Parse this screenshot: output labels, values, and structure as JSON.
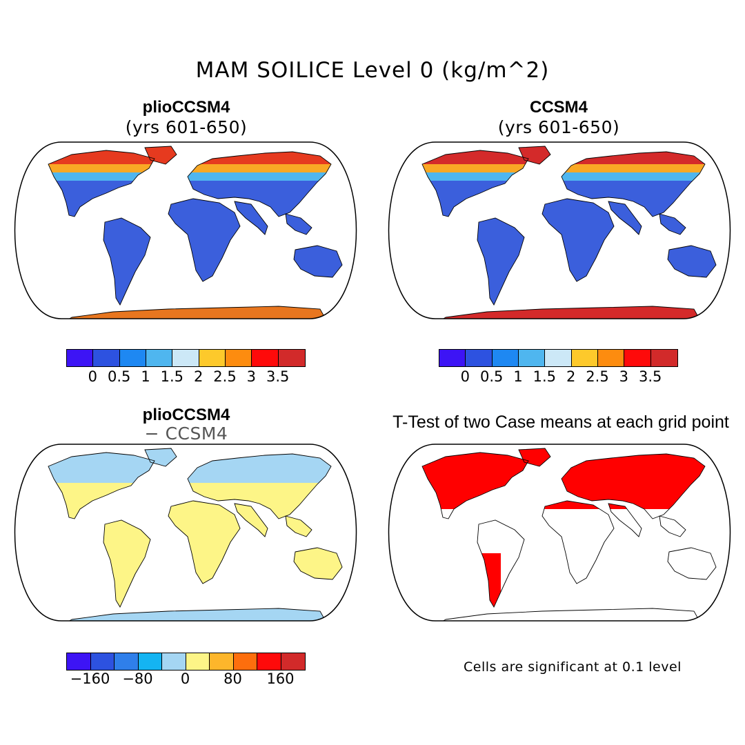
{
  "main_title": "MAM SOILICE Level 0 (kg/m^2)",
  "panels": [
    {
      "id": "plio",
      "title": "plioCCSM4",
      "subtitle": "(yrs 601-650)",
      "colors": {
        "land": "#3b5fdc",
        "north": "#e63a1f",
        "mid": "#f9a825",
        "transition": "#4fb6ef",
        "antarctica": "#e8761f"
      }
    },
    {
      "id": "ccsm4",
      "title": "CCSM4",
      "subtitle": "(yrs 601-650)",
      "colors": {
        "land": "#3b5fdc",
        "north": "#d42a2a",
        "mid": "#f9a825",
        "transition": "#4fb6ef",
        "antarctica": "#d42a2a"
      }
    },
    {
      "id": "diff",
      "title": "plioCCSM4",
      "subtitle": "− CCSM4",
      "colors": {
        "land": "#fdf587",
        "north": "#a5d6f3",
        "mid": "#a5d6f3",
        "transition": "#a5d6f3",
        "antarctica": "#a5d6f3"
      }
    },
    {
      "id": "ttest",
      "title": "T-Test of two Case means at each grid point",
      "note": "Cells are significant at 0.1 level",
      "colors": {
        "signif": "#ff0000"
      }
    }
  ],
  "colorbar_abs": {
    "colors": [
      "#3d14f5",
      "#2d52e0",
      "#1e88f2",
      "#4fb6ef",
      "#cce8f7",
      "#fdc92b",
      "#fd8c0f",
      "#fe0a0a",
      "#d22a2a"
    ],
    "labels": [
      "0",
      "0.5",
      "1",
      "1.5",
      "2",
      "2.5",
      "3",
      "3.5"
    ]
  },
  "colorbar_diff": {
    "colors": [
      "#3d14f5",
      "#2d52e0",
      "#2f7fea",
      "#14b4f2",
      "#a5d6f3",
      "#fdf587",
      "#fdb62b",
      "#fd6e0d",
      "#fe0a0a",
      "#d22a2a"
    ],
    "labels": [
      "−160",
      "−80",
      "0",
      "80",
      "160"
    ]
  }
}
